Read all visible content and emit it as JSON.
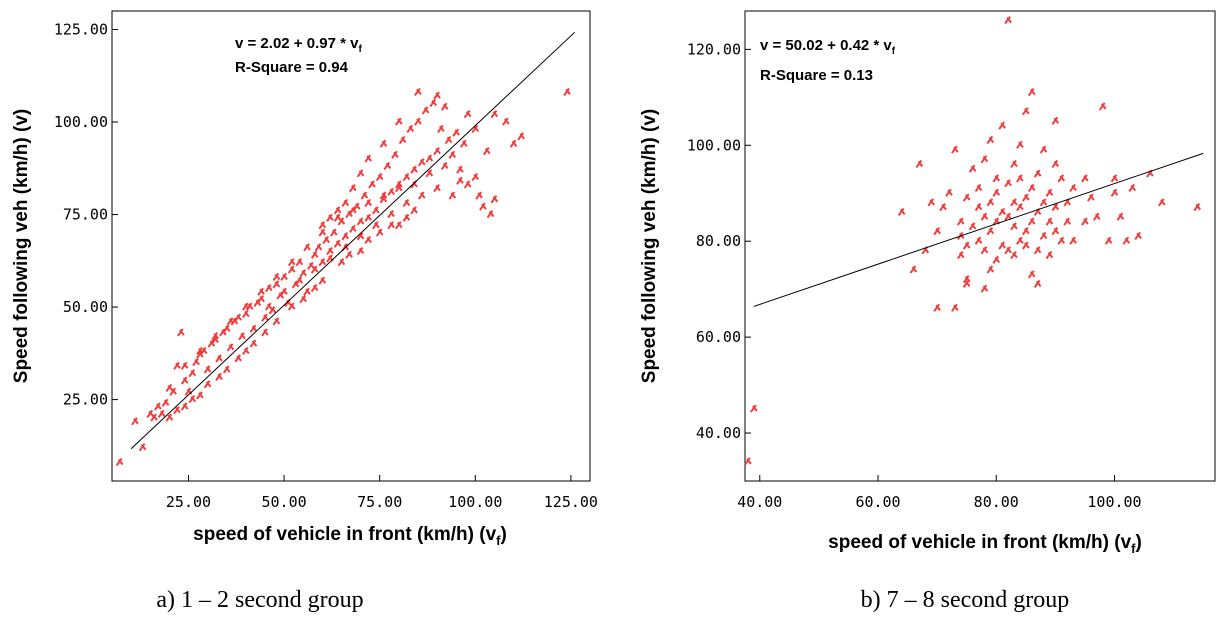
{
  "chart_data": [
    {
      "type": "scatter",
      "caption": "a) 1 – 2 second group",
      "equation": {
        "prefix": "v = 2.02 + 0.97 * v",
        "sub": "f"
      },
      "r_square": "R-Square = 0.94",
      "xlabel": {
        "text": "speed of vehicle in front (km/h) (v",
        "sub": "f",
        "close": ")"
      },
      "ylabel": "Speed following veh (km/h) (v)",
      "xlim": [
        5,
        130
      ],
      "ylim": [
        3,
        130
      ],
      "xticks": [
        25,
        50,
        75,
        100,
        125
      ],
      "xtick_labels": [
        "25.00",
        "50.00",
        "75.00",
        "100.00",
        "125.00"
      ],
      "yticks": [
        25,
        50,
        75,
        100,
        125
      ],
      "ytick_labels": [
        "25.00",
        "50.00",
        "75.00",
        "100.00",
        "125.00"
      ],
      "fit": {
        "intercept": 2.02,
        "slope": 0.97,
        "x_range": [
          10,
          126
        ]
      },
      "series": [
        {
          "color": "#f23c3c",
          "points": [
            [
              7,
              8
            ],
            [
              11,
              19
            ],
            [
              13,
              12
            ],
            [
              15,
              21
            ],
            [
              17,
              23
            ],
            [
              19,
              24
            ],
            [
              21,
              27
            ],
            [
              22,
              34
            ],
            [
              23,
              43
            ],
            [
              24,
              30
            ],
            [
              25,
              27
            ],
            [
              26,
              32
            ],
            [
              27,
              35
            ],
            [
              28,
              37
            ],
            [
              29,
              38
            ],
            [
              30,
              33
            ],
            [
              31,
              40
            ],
            [
              32,
              41
            ],
            [
              33,
              36
            ],
            [
              34,
              43
            ],
            [
              35,
              44
            ],
            [
              36,
              39
            ],
            [
              37,
              46
            ],
            [
              38,
              47
            ],
            [
              39,
              42
            ],
            [
              40,
              48
            ],
            [
              41,
              50
            ],
            [
              42,
              44
            ],
            [
              43,
              51
            ],
            [
              44,
              52
            ],
            [
              45,
              47
            ],
            [
              46,
              55
            ],
            [
              47,
              49
            ],
            [
              48,
              56
            ],
            [
              49,
              53
            ],
            [
              50,
              58
            ],
            [
              51,
              51
            ],
            [
              52,
              60
            ],
            [
              53,
              56
            ],
            [
              54,
              62
            ],
            [
              55,
              59
            ],
            [
              56,
              54
            ],
            [
              57,
              61
            ],
            [
              58,
              64
            ],
            [
              59,
              66
            ],
            [
              60,
              62
            ],
            [
              61,
              68
            ],
            [
              62,
              65
            ],
            [
              63,
              70
            ],
            [
              64,
              67
            ],
            [
              65,
              73
            ],
            [
              66,
              69
            ],
            [
              67,
              75
            ],
            [
              68,
              71
            ],
            [
              69,
              77
            ],
            [
              70,
              73
            ],
            [
              71,
              80
            ],
            [
              72,
              74
            ],
            [
              73,
              83
            ],
            [
              74,
              76
            ],
            [
              75,
              85
            ],
            [
              76,
              79
            ],
            [
              77,
              88
            ],
            [
              78,
              81
            ],
            [
              79,
              91
            ],
            [
              80,
              83
            ],
            [
              81,
              95
            ],
            [
              82,
              85
            ],
            [
              83,
              98
            ],
            [
              84,
              87
            ],
            [
              85,
              100
            ],
            [
              86,
              89
            ],
            [
              87,
              103
            ],
            [
              88,
              90
            ],
            [
              89,
              105
            ],
            [
              90,
              92
            ],
            [
              91,
              98
            ],
            [
              92,
              88
            ],
            [
              93,
              95
            ],
            [
              94,
              91
            ],
            [
              95,
              97
            ],
            [
              96,
              84
            ],
            [
              97,
              94
            ],
            [
              98,
              83
            ],
            [
              100,
              85
            ],
            [
              101,
              80
            ],
            [
              102,
              77
            ],
            [
              103,
              92
            ],
            [
              104,
              75
            ],
            [
              105,
              79
            ],
            [
              110,
              94
            ],
            [
              112,
              96
            ],
            [
              124,
              108
            ],
            [
              75,
              70
            ],
            [
              78,
              72
            ],
            [
              80,
              72
            ],
            [
              82,
              74
            ],
            [
              84,
              76
            ],
            [
              70,
              65
            ],
            [
              72,
              68
            ],
            [
              65,
              62
            ],
            [
              67,
              64
            ],
            [
              60,
              57
            ],
            [
              58,
              55
            ],
            [
              55,
              52
            ],
            [
              52,
              50
            ],
            [
              48,
              46
            ],
            [
              45,
              43
            ],
            [
              42,
              40
            ],
            [
              40,
              38
            ],
            [
              38,
              36
            ],
            [
              35,
              33
            ],
            [
              33,
              31
            ],
            [
              30,
              29
            ],
            [
              28,
              26
            ],
            [
              26,
              25
            ],
            [
              24,
              23
            ],
            [
              22,
              22
            ],
            [
              20,
              20
            ],
            [
              18,
              21
            ],
            [
              16,
              20
            ],
            [
              46,
              50
            ],
            [
              50,
              54
            ],
            [
              54,
              57
            ],
            [
              58,
              60
            ],
            [
              62,
              63
            ],
            [
              66,
              66
            ],
            [
              70,
              69
            ],
            [
              74,
              72
            ],
            [
              78,
              75
            ],
            [
              82,
              78
            ],
            [
              86,
              80
            ],
            [
              90,
              82
            ],
            [
              88,
              86
            ],
            [
              84,
              83
            ],
            [
              80,
              82
            ],
            [
              76,
              80
            ],
            [
              72,
              78
            ],
            [
              68,
              76
            ],
            [
              64,
              74
            ],
            [
              60,
              70
            ],
            [
              56,
              66
            ],
            [
              52,
              62
            ],
            [
              48,
              58
            ],
            [
              44,
              54
            ],
            [
              40,
              50
            ],
            [
              36,
              46
            ],
            [
              32,
              42
            ],
            [
              28,
              38
            ],
            [
              24,
              34
            ],
            [
              20,
              28
            ],
            [
              80,
              100
            ],
            [
              85,
              108
            ],
            [
              90,
              107
            ],
            [
              92,
              104
            ],
            [
              76,
              94
            ],
            [
              72,
              90
            ],
            [
              70,
              86
            ],
            [
              68,
              82
            ],
            [
              66,
              78
            ],
            [
              64,
              76
            ],
            [
              62,
              74
            ],
            [
              60,
              72
            ],
            [
              94,
              80
            ],
            [
              96,
              87
            ],
            [
              98,
              102
            ],
            [
              100,
              98
            ],
            [
              105,
              102
            ],
            [
              108,
              100
            ]
          ]
        }
      ]
    },
    {
      "type": "scatter",
      "caption": "b) 7 – 8 second group",
      "equation": {
        "prefix": "v = 50.02 + 0.42 * v",
        "sub": "f"
      },
      "r_square": "R-Square = 0.13",
      "xlabel": {
        "text": "speed of vehicle in front (km/h) (v",
        "sub": "f",
        "close": ")"
      },
      "ylabel": "Speed following veh (km/h) (v)",
      "xlim": [
        37.5,
        117
      ],
      "ylim": [
        30,
        128
      ],
      "xticks": [
        40,
        60,
        80,
        100
      ],
      "xtick_labels": [
        "40.00",
        "60.00",
        "80.00",
        "100.00"
      ],
      "yticks": [
        40,
        60,
        80,
        100,
        120
      ],
      "ytick_labels": [
        "40.00",
        "60.00",
        "80.00",
        "100.00",
        "120.00"
      ],
      "fit": {
        "intercept": 50.02,
        "slope": 0.42,
        "x_range": [
          39,
          115
        ]
      },
      "series": [
        {
          "color": "#f23c3c",
          "points": [
            [
              38,
              34
            ],
            [
              39,
              45
            ],
            [
              64,
              86
            ],
            [
              66,
              74
            ],
            [
              67,
              96
            ],
            [
              69,
              88
            ],
            [
              70,
              66
            ],
            [
              71,
              87
            ],
            [
              72,
              90
            ],
            [
              73,
              66
            ],
            [
              73,
              99
            ],
            [
              74,
              77
            ],
            [
              74,
              84
            ],
            [
              74,
              81
            ],
            [
              75,
              79
            ],
            [
              75,
              72
            ],
            [
              75,
              89
            ],
            [
              76,
              83
            ],
            [
              76,
              95
            ],
            [
              77,
              80
            ],
            [
              77,
              87
            ],
            [
              77,
              91
            ],
            [
              78,
              78
            ],
            [
              78,
              85
            ],
            [
              78,
              97
            ],
            [
              79,
              74
            ],
            [
              79,
              82
            ],
            [
              79,
              88
            ],
            [
              79,
              101
            ],
            [
              80,
              76
            ],
            [
              80,
              84
            ],
            [
              80,
              90
            ],
            [
              80,
              93
            ],
            [
              81,
              79
            ],
            [
              81,
              86
            ],
            [
              81,
              104
            ],
            [
              82,
              78
            ],
            [
              82,
              85
            ],
            [
              82,
              92
            ],
            [
              82,
              126
            ],
            [
              83,
              77
            ],
            [
              83,
              83
            ],
            [
              83,
              88
            ],
            [
              83,
              96
            ],
            [
              84,
              80
            ],
            [
              84,
              87
            ],
            [
              84,
              93
            ],
            [
              84,
              100
            ],
            [
              85,
              79
            ],
            [
              85,
              82
            ],
            [
              85,
              89
            ],
            [
              85,
              107
            ],
            [
              86,
              73
            ],
            [
              86,
              84
            ],
            [
              86,
              91
            ],
            [
              86,
              111
            ],
            [
              87,
              78
            ],
            [
              87,
              86
            ],
            [
              87,
              94
            ],
            [
              88,
              81
            ],
            [
              88,
              88
            ],
            [
              88,
              99
            ],
            [
              89,
              77
            ],
            [
              89,
              84
            ],
            [
              89,
              90
            ],
            [
              90,
              82
            ],
            [
              90,
              87
            ],
            [
              90,
              96
            ],
            [
              90,
              105
            ],
            [
              91,
              80
            ],
            [
              91,
              93
            ],
            [
              92,
              84
            ],
            [
              92,
              88
            ],
            [
              93,
              80
            ],
            [
              93,
              91
            ],
            [
              95,
              84
            ],
            [
              95,
              93
            ],
            [
              96,
              89
            ],
            [
              97,
              85
            ],
            [
              98,
              108
            ],
            [
              99,
              80
            ],
            [
              100,
              93
            ],
            [
              100,
              90
            ],
            [
              101,
              85
            ],
            [
              102,
              80
            ],
            [
              103,
              91
            ],
            [
              104,
              81
            ],
            [
              106,
              94
            ],
            [
              108,
              88
            ],
            [
              114,
              87
            ],
            [
              75,
              71
            ],
            [
              78,
              70
            ],
            [
              87,
              71
            ],
            [
              70,
              82
            ],
            [
              68,
              78
            ]
          ]
        }
      ]
    }
  ]
}
